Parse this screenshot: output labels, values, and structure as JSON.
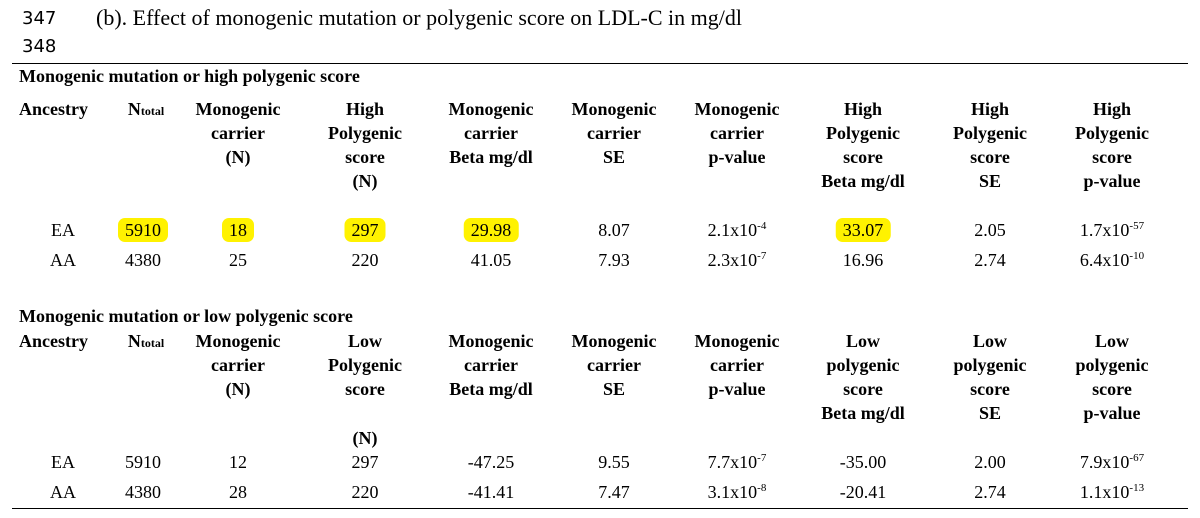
{
  "line_numbers": [
    "347",
    "348"
  ],
  "heading": "(b). Effect of monogenic mutation or polygenic score on LDL-C in mg/dl",
  "table1": {
    "title": "Monogenic mutation or high polygenic score",
    "headers": {
      "ancestry": "Ancestry",
      "n_total_main": "N",
      "n_total_sub": "total",
      "c2": [
        "Monogenic",
        "carrier",
        "(N)"
      ],
      "c3": [
        "High",
        "Polygenic",
        "score",
        "(N)"
      ],
      "c4": [
        "Monogenic",
        "carrier",
        "Beta mg/dl"
      ],
      "c5": [
        "Monogenic",
        "carrier",
        "SE"
      ],
      "c6": [
        "Monogenic",
        "carrier",
        "p-value"
      ],
      "c7": [
        "High",
        "Polygenic",
        "score",
        "Beta mg/dl"
      ],
      "c8": [
        "High",
        "Polygenic",
        "score",
        "SE"
      ],
      "c9": [
        "High",
        "Polygenic",
        "score",
        "p-value"
      ]
    },
    "rows": [
      {
        "ancestry": "EA",
        "n_total": "5910",
        "carrier_n": "18",
        "score_n": "297",
        "mono_beta": "29.98",
        "mono_se": "8.07",
        "mono_p_base": "2.1x10",
        "mono_p_exp": "-4",
        "score_beta": "33.07",
        "score_se": "2.05",
        "score_p_base": "1.7x10",
        "score_p_exp": "-57"
      },
      {
        "ancestry": "AA",
        "n_total": "4380",
        "carrier_n": "25",
        "score_n": "220",
        "mono_beta": "41.05",
        "mono_se": "7.93",
        "mono_p_base": "2.3x10",
        "mono_p_exp": "-7",
        "score_beta": "16.96",
        "score_se": "2.74",
        "score_p_base": "6.4x10",
        "score_p_exp": "-10"
      }
    ],
    "highlight_color": "#fff200"
  },
  "table2": {
    "title": "Monogenic mutation or low polygenic score",
    "headers": {
      "ancestry": "Ancestry",
      "n_total_main": "N",
      "n_total_sub": "total",
      "c2": [
        "Monogenic",
        "carrier",
        "(N)"
      ],
      "c3": [
        "Low",
        "Polygenic",
        "score"
      ],
      "c3_n": "(N)",
      "c4": [
        "Monogenic",
        "carrier",
        "Beta mg/dl"
      ],
      "c5": [
        "Monogenic",
        "carrier",
        "SE"
      ],
      "c6": [
        "Monogenic",
        "carrier",
        "p-value"
      ],
      "c7": [
        "Low",
        "polygenic",
        "score",
        "Beta mg/dl"
      ],
      "c8": [
        "Low",
        "polygenic",
        "score",
        "SE"
      ],
      "c9": [
        "Low",
        "polygenic",
        "score",
        "p-value"
      ]
    },
    "rows": [
      {
        "ancestry": "EA",
        "n_total": "5910",
        "carrier_n": "12",
        "score_n": "297",
        "mono_beta": "-47.25",
        "mono_se": "9.55",
        "mono_p_base": "7.7x10",
        "mono_p_exp": "-7",
        "score_beta": "-35.00",
        "score_se": "2.00",
        "score_p_base": "7.9x10",
        "score_p_exp": "-67"
      },
      {
        "ancestry": "AA",
        "n_total": "4380",
        "carrier_n": "28",
        "score_n": "220",
        "mono_beta": "-41.41",
        "mono_se": "7.47",
        "mono_p_base": "3.1x10",
        "mono_p_exp": "-8",
        "score_beta": "-20.41",
        "score_se": "2.74",
        "score_p_base": "1.1x10",
        "score_p_exp": "-13"
      }
    ]
  }
}
